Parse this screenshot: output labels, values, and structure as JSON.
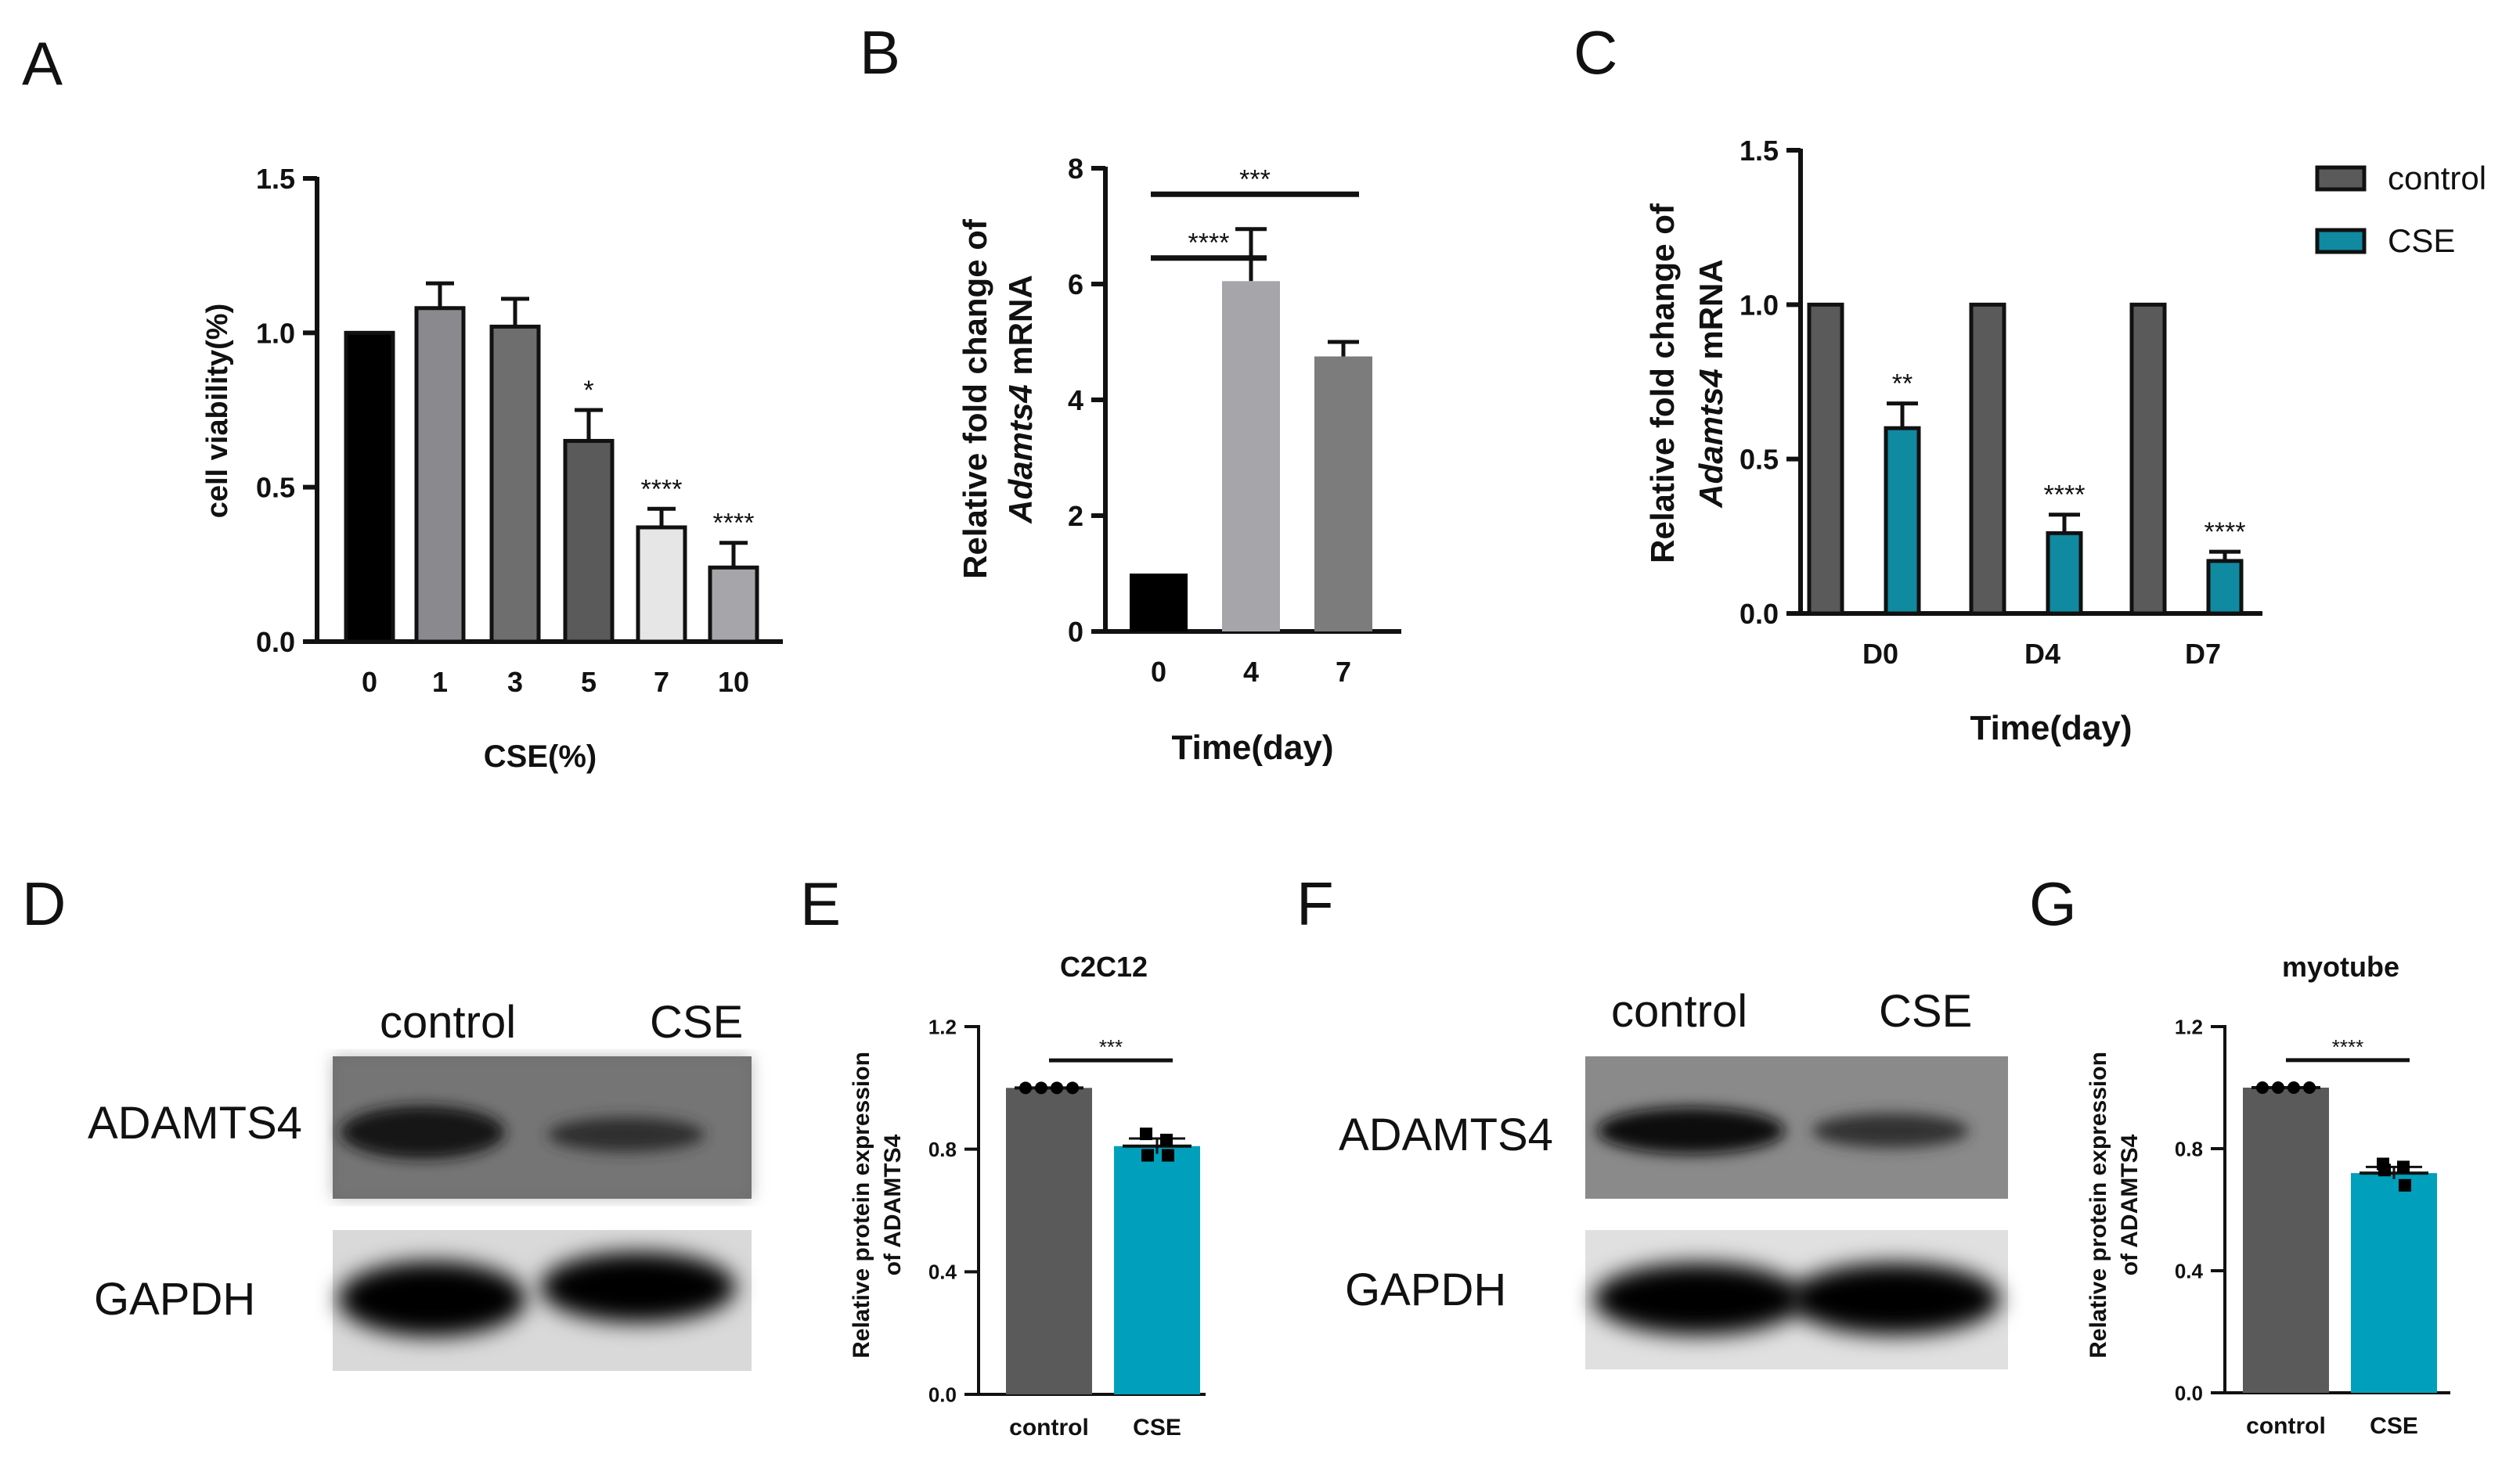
{
  "panels": {
    "A": "A",
    "B": "B",
    "C": "C",
    "D": "D",
    "E": "E",
    "F": "F",
    "G": "G"
  },
  "colors": {
    "axis": "#111111",
    "black": "#000000",
    "dark_gray": "#5a5a5a",
    "mid_gray": "#6e6e6e",
    "light_gray": "#a6a6aa",
    "pale_gray": "#e6e6e6",
    "gray2": "#8a8a8e",
    "teal": "#0f8aa0",
    "cyan": "#00a0bc"
  },
  "blots": {
    "D": {
      "lane_labels": [
        "control",
        "CSE"
      ],
      "row_labels": [
        "ADAMTS4",
        "GAPDH"
      ]
    },
    "F": {
      "lane_labels": [
        "control",
        "CSE"
      ],
      "row_labels": [
        "ADAMTS4",
        "GAPDH"
      ]
    }
  },
  "chart_data": [
    {
      "panel": "A",
      "type": "bar",
      "categories": [
        "0",
        "1",
        "3",
        "5",
        "7",
        "10"
      ],
      "values": [
        1.0,
        1.08,
        1.02,
        0.65,
        0.37,
        0.24
      ],
      "errors": [
        0,
        0.08,
        0.09,
        0.1,
        0.06,
        0.08
      ],
      "significance": [
        "",
        "",
        "",
        "*",
        "****",
        "****"
      ],
      "bar_colors": [
        "#000000",
        "#8a8a8e",
        "#6e6e6e",
        "#5a5a5a",
        "#e6e6e6",
        "#a6a6aa"
      ],
      "title": "",
      "xlabel": "CSE(%)",
      "ylabel": "cell viability(%)",
      "ylim": [
        0,
        1.5
      ],
      "yticks": [
        "0.0",
        "0.5",
        "1.0",
        "1.5"
      ]
    },
    {
      "panel": "B",
      "type": "bar",
      "categories": [
        "0",
        "4",
        "7"
      ],
      "values": [
        1.0,
        6.05,
        4.75
      ],
      "errors": [
        0,
        0.9,
        0.25
      ],
      "bar_colors": [
        "#000000",
        "#a6a6aa",
        "#7c7c7c"
      ],
      "comparisons": [
        {
          "from": "0",
          "to": "4",
          "label": "****"
        },
        {
          "from": "0",
          "to": "7",
          "label": "***"
        }
      ],
      "title": "",
      "xlabel": "Time(day)",
      "ylabel_line1": "Relative fold change of",
      "ylabel_line2_italic": "Adamts4",
      "ylabel_line2_rest": " mRNA",
      "ylim": [
        0,
        8
      ],
      "yticks": [
        "0",
        "2",
        "4",
        "6",
        "8"
      ]
    },
    {
      "panel": "C",
      "type": "bar",
      "categories": [
        "D0",
        "D4",
        "D7"
      ],
      "series": [
        {
          "name": "control",
          "values": [
            1.0,
            1.0,
            1.0
          ],
          "errors": [
            0,
            0,
            0
          ],
          "color": "#5a5a5a"
        },
        {
          "name": "CSE",
          "values": [
            0.6,
            0.26,
            0.17
          ],
          "errors": [
            0.08,
            0.06,
            0.03
          ],
          "color": "#0f8aa0"
        }
      ],
      "significance": [
        "**",
        "****",
        "****"
      ],
      "title": "",
      "xlabel": "Time(day)",
      "ylabel_line1": "Relative fold change of",
      "ylabel_line2_italic": "Adamts4",
      "ylabel_line2_rest": " mRNA",
      "ylim": [
        0,
        1.5
      ],
      "yticks": [
        "0.0",
        "0.5",
        "1.0",
        "1.5"
      ],
      "legend_position": "top-right"
    },
    {
      "panel": "E",
      "type": "bar",
      "categories": [
        "control",
        "CSE"
      ],
      "values": [
        1.0,
        0.81
      ],
      "errors": [
        0,
        0.025
      ],
      "points": [
        [
          1.0,
          1.0,
          1.0,
          1.0
        ],
        [
          0.85,
          0.83,
          0.78,
          0.78
        ]
      ],
      "bar_colors": [
        "#5a5a5a",
        "#00a0bc"
      ],
      "significance": "***",
      "title": "C2C12",
      "xlabel": "",
      "ylabel_line1": "Relative protein expression",
      "ylabel_line2": "of ADAMTS4",
      "ylim": [
        0,
        1.2
      ],
      "yticks": [
        "0.0",
        "0.4",
        "0.8",
        "1.2"
      ]
    },
    {
      "panel": "G",
      "type": "bar",
      "categories": [
        "control",
        "CSE"
      ],
      "values": [
        1.0,
        0.72
      ],
      "errors": [
        0,
        0.02
      ],
      "points": [
        [
          1.0,
          1.0,
          1.0,
          1.0
        ],
        [
          0.75,
          0.74,
          0.73,
          0.68
        ]
      ],
      "bar_colors": [
        "#5a5a5a",
        "#00a0bc"
      ],
      "significance": "****",
      "title": "myotube",
      "xlabel": "",
      "ylabel_line1": "Relative protein expression",
      "ylabel_line2": "of ADAMTS4",
      "ylim": [
        0,
        1.2
      ],
      "yticks": [
        "0.0",
        "0.4",
        "0.8",
        "1.2"
      ]
    }
  ]
}
